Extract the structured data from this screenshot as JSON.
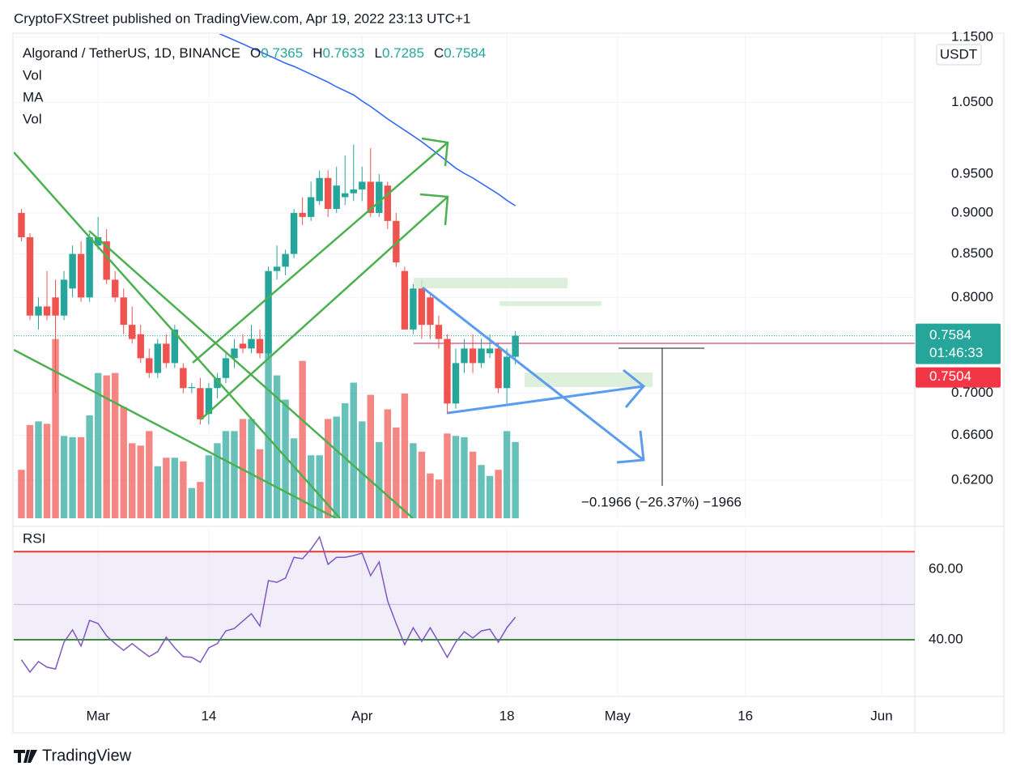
{
  "header": "CryptoFXStreet published on TradingView.com, Apr 19, 2022 23:13 UTC+1",
  "footer": "TradingView",
  "chart_data": {
    "type": "candlestick",
    "legend": {
      "symbol": "Algorand / TetherUS, 1D, BINANCE",
      "fields": [
        {
          "key": "O",
          "value": "0.7365"
        },
        {
          "key": "H",
          "value": "0.7633"
        },
        {
          "key": "L",
          "value": "0.7285"
        },
        {
          "key": "C",
          "value": "0.7584"
        }
      ],
      "indicators": [
        "Vol",
        "MA",
        "Vol"
      ]
    },
    "axis_unit": "USDT",
    "log_scale": true,
    "grid": true,
    "up_color": "#26a69a",
    "down_color": "#ef5350",
    "x": [
      51,
      52,
      53,
      54,
      55,
      56,
      57,
      58,
      59,
      60,
      61,
      62,
      63,
      64,
      65,
      66,
      67,
      68,
      69,
      70,
      71,
      72,
      73,
      74,
      75,
      76,
      77,
      78,
      79,
      80,
      81,
      82,
      83,
      84,
      85,
      86,
      87,
      88,
      89,
      90,
      91,
      92,
      93,
      94,
      95,
      96,
      97,
      98,
      99,
      100,
      101,
      102,
      103,
      104,
      105,
      106,
      107,
      108,
      109
    ],
    "xlim": [
      50.1,
      155.9
    ],
    "xticks": [
      {
        "value": 60,
        "label": "Mar"
      },
      {
        "value": 73,
        "label": "14"
      },
      {
        "value": 91,
        "label": "Apr"
      },
      {
        "value": 108,
        "label": "18"
      },
      {
        "value": 121,
        "label": "May"
      },
      {
        "value": 136,
        "label": "16"
      },
      {
        "value": 152,
        "label": "Jun"
      }
    ],
    "open": [
      0.9,
      0.87,
      0.78,
      0.79,
      0.8,
      0.78,
      0.81,
      0.85,
      0.8,
      0.86,
      0.865,
      0.82,
      0.8,
      0.77,
      0.76,
      0.735,
      0.72,
      0.75,
      0.73,
      0.725,
      0.705,
      0.705,
      0.68,
      0.705,
      0.715,
      0.735,
      0.75,
      0.745,
      0.755,
      0.74,
      0.83,
      0.835,
      0.85,
      0.9,
      0.895,
      0.915,
      0.945,
      0.905,
      0.92,
      0.925,
      0.93,
      0.94,
      0.9,
      0.935,
      0.89,
      0.83,
      0.765,
      0.81,
      0.8,
      0.77,
      0.755,
      0.69,
      0.73,
      0.745,
      0.73,
      0.74,
      0.745,
      0.705,
      0.7365
    ],
    "high": [
      0.905,
      0.875,
      0.8,
      0.83,
      0.82,
      0.83,
      0.86,
      0.865,
      0.875,
      0.895,
      0.88,
      0.83,
      0.81,
      0.79,
      0.77,
      0.745,
      0.755,
      0.76,
      0.77,
      0.73,
      0.71,
      0.715,
      0.71,
      0.72,
      0.74,
      0.755,
      0.76,
      0.77,
      0.765,
      0.835,
      0.86,
      0.855,
      0.905,
      0.92,
      0.94,
      0.955,
      0.955,
      0.96,
      0.975,
      0.99,
      0.96,
      0.985,
      0.95,
      0.94,
      0.9,
      0.835,
      0.815,
      0.82,
      0.805,
      0.78,
      0.76,
      0.745,
      0.755,
      0.76,
      0.755,
      0.76,
      0.75,
      0.745,
      0.7633
    ],
    "low": [
      0.865,
      0.775,
      0.765,
      0.775,
      0.7,
      0.775,
      0.8,
      0.795,
      0.795,
      0.855,
      0.815,
      0.795,
      0.76,
      0.75,
      0.73,
      0.715,
      0.715,
      0.725,
      0.725,
      0.7,
      0.7,
      0.67,
      0.67,
      0.695,
      0.71,
      0.725,
      0.74,
      0.74,
      0.735,
      0.735,
      0.82,
      0.825,
      0.845,
      0.885,
      0.89,
      0.91,
      0.895,
      0.9,
      0.91,
      0.915,
      0.915,
      0.895,
      0.895,
      0.88,
      0.835,
      0.765,
      0.76,
      0.755,
      0.755,
      0.745,
      0.68,
      0.685,
      0.72,
      0.72,
      0.725,
      0.735,
      0.7,
      0.69,
      0.7285
    ],
    "close": [
      0.87,
      0.78,
      0.79,
      0.78,
      0.78,
      0.82,
      0.85,
      0.8,
      0.87,
      0.87,
      0.82,
      0.8,
      0.77,
      0.755,
      0.735,
      0.72,
      0.75,
      0.73,
      0.765,
      0.705,
      0.706,
      0.675,
      0.705,
      0.715,
      0.735,
      0.745,
      0.745,
      0.755,
      0.74,
      0.83,
      0.835,
      0.85,
      0.9,
      0.895,
      0.92,
      0.945,
      0.905,
      0.935,
      0.925,
      0.93,
      0.94,
      0.9,
      0.94,
      0.89,
      0.84,
      0.765,
      0.81,
      0.77,
      0.77,
      0.755,
      0.69,
      0.73,
      0.745,
      0.73,
      0.745,
      0.745,
      0.705,
      0.7365,
      0.7584
    ],
    "ylim": [
      0.588,
      1.155
    ],
    "yticks": [
      {
        "value": 0.62,
        "label": "0.6200"
      },
      {
        "value": 0.66,
        "label": "0.6600"
      },
      {
        "value": 0.7,
        "label": "0.7000"
      },
      {
        "value": 0.8,
        "label": "0.8000"
      },
      {
        "value": 0.85,
        "label": "0.8500"
      },
      {
        "value": 0.9,
        "label": "0.9000"
      },
      {
        "value": 0.95,
        "label": "0.9500"
      },
      {
        "value": 1.05,
        "label": "1.0500"
      },
      {
        "value": 1.15,
        "label": "1.1500"
      }
    ],
    "volume": [
      40,
      77,
      80,
      78,
      148,
      68,
      67,
      67,
      85,
      120,
      118,
      120,
      92,
      62,
      60,
      72,
      43,
      50,
      50,
      47,
      25,
      30,
      52,
      62,
      72,
      72,
      82,
      82,
      57,
      148,
      118,
      98,
      66,
      130,
      52,
      52,
      82,
      84,
      95,
      112,
      80,
      102,
      63,
      90,
      75,
      103,
      62,
      55,
      37,
      32,
      70,
      68,
      67,
      55,
      44,
      35,
      40,
      72,
      63
    ],
    "volume_ylim": [
      0,
      400
    ],
    "ma": {
      "color": "#2962ff",
      "values": [
        null,
        null,
        null,
        null,
        null,
        null,
        null,
        null,
        null,
        null,
        null,
        null,
        null,
        null,
        null,
        null,
        null,
        null,
        null,
        null,
        null,
        null,
        null,
        1.157,
        1.151,
        1.145,
        1.139,
        1.133,
        1.127,
        1.121,
        1.115,
        1.109,
        1.104,
        1.098,
        1.092,
        1.086,
        1.08,
        1.073,
        1.067,
        1.061,
        1.052,
        1.044,
        1.035,
        1.026,
        1.018,
        1.01,
        1.002,
        0.994,
        0.985,
        0.976,
        0.967,
        0.958,
        0.951,
        0.945,
        0.938,
        0.931,
        0.924,
        0.916,
        0.909
      ]
    },
    "last_price": {
      "value": 0.7584,
      "label": "0.7584",
      "countdown": "01:46:33"
    },
    "price_line": {
      "value": 0.7504,
      "label": "0.7504"
    },
    "annotation": "−0.1966 (−26.37%) −1966",
    "rsi": {
      "title": "RSI",
      "color": "#7e57c2",
      "values": [
        34.3,
        30.8,
        33.8,
        32.2,
        31.7,
        39.3,
        42.8,
        38.2,
        45.5,
        44.6,
        41.1,
        38.9,
        37,
        38.9,
        37,
        35.2,
        36.6,
        40.7,
        37.7,
        35.2,
        35,
        33.6,
        37.7,
        38.9,
        42.5,
        43.2,
        45.3,
        47.4,
        43.9,
        56.8,
        56.3,
        57.5,
        63.4,
        63,
        65.7,
        69.2,
        61.4,
        63.4,
        63.4,
        63.9,
        64.6,
        58.2,
        62.1,
        51,
        44.6,
        38.6,
        43.4,
        39.5,
        43.4,
        39.3,
        35,
        39.3,
        42.3,
        40.5,
        42.5,
        43,
        39.3,
        43.4,
        46.4
      ],
      "ylim": [
        23.9,
        72.2
      ],
      "yticks": [
        {
          "value": 40,
          "label": "40.00"
        },
        {
          "value": 60,
          "label": "60.00"
        }
      ],
      "upper_band": 65,
      "middle_band": 50,
      "lower_band": 40
    }
  }
}
